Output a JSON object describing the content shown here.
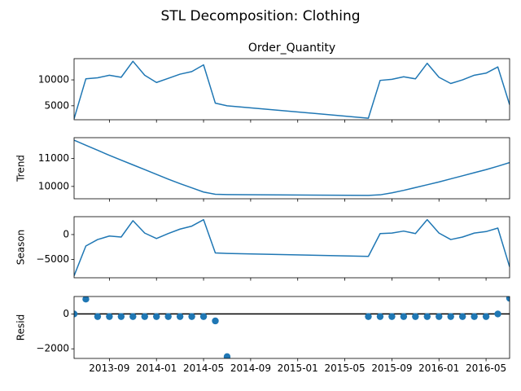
{
  "figure": {
    "title": "STL Decomposition: Clothing"
  },
  "colors": {
    "series": "#1f77b4",
    "zero_line": "#000000",
    "axes": "#000000",
    "background": "#ffffff"
  },
  "chart_data": [
    {
      "type": "line",
      "title": "Order_Quantity",
      "ylabel": "",
      "ylim": [
        2300,
        14100
      ],
      "yticks": [
        {
          "value": 5000,
          "label": "5000"
        },
        {
          "value": 10000,
          "label": "10000"
        }
      ],
      "x": [
        "2013-06",
        "2013-07",
        "2013-08",
        "2013-09",
        "2013-10",
        "2013-11",
        "2013-12",
        "2014-01",
        "2014-02",
        "2014-03",
        "2014-04",
        "2014-05",
        "2014-06",
        "2014-07",
        "2015-07",
        "2015-08",
        "2015-09",
        "2015-10",
        "2015-11",
        "2015-12",
        "2016-01",
        "2016-02",
        "2016-03",
        "2016-04",
        "2016-05",
        "2016-06",
        "2016-07"
      ],
      "values": [
        2500,
        10200,
        10400,
        10900,
        10500,
        13600,
        10900,
        9500,
        10300,
        11100,
        11600,
        12900,
        5500,
        5000,
        2600,
        9900,
        10100,
        10600,
        10200,
        13200,
        10500,
        9300,
        10000,
        10900,
        11300,
        12500,
        5200
      ]
    },
    {
      "type": "line",
      "title": "",
      "ylabel": "Trend",
      "ylim": [
        9560,
        11740
      ],
      "yticks": [
        {
          "value": 10000,
          "label": "10000"
        },
        {
          "value": 11000,
          "label": "11000"
        }
      ],
      "x": [
        "2013-06",
        "2013-07",
        "2013-08",
        "2013-09",
        "2013-10",
        "2013-11",
        "2013-12",
        "2014-01",
        "2014-02",
        "2014-03",
        "2014-04",
        "2014-05",
        "2014-06",
        "2014-07",
        "2015-07",
        "2015-08",
        "2015-09",
        "2015-10",
        "2015-11",
        "2015-12",
        "2016-01",
        "2016-02",
        "2016-03",
        "2016-04",
        "2016-05",
        "2016-06",
        "2016-07"
      ],
      "values": [
        11650,
        11470,
        11290,
        11110,
        10940,
        10770,
        10600,
        10430,
        10260,
        10100,
        9950,
        9800,
        9720,
        9710,
        9680,
        9700,
        9770,
        9860,
        9960,
        10060,
        10160,
        10270,
        10380,
        10490,
        10600,
        10720,
        10850
      ]
    },
    {
      "type": "line",
      "title": "",
      "ylabel": "Season",
      "ylim": [
        -8700,
        3600
      ],
      "yticks": [
        {
          "value": -5000,
          "label": "−5000"
        },
        {
          "value": 0,
          "label": "0"
        }
      ],
      "x": [
        "2013-06",
        "2013-07",
        "2013-08",
        "2013-09",
        "2013-10",
        "2013-11",
        "2013-12",
        "2014-01",
        "2014-02",
        "2014-03",
        "2014-04",
        "2014-05",
        "2014-06",
        "2014-07",
        "2015-07",
        "2015-08",
        "2015-09",
        "2015-10",
        "2015-11",
        "2015-12",
        "2016-01",
        "2016-02",
        "2016-03",
        "2016-04",
        "2016-05",
        "2016-06",
        "2016-07"
      ],
      "values": [
        -8300,
        -2300,
        -1000,
        -300,
        -500,
        2800,
        300,
        -800,
        200,
        1100,
        1700,
        3000,
        -3700,
        -3800,
        -4400,
        200,
        300,
        700,
        200,
        3000,
        300,
        -1000,
        -500,
        300,
        600,
        1300,
        -6500
      ]
    },
    {
      "type": "scatter",
      "title": "",
      "ylabel": "Resid",
      "ylim": [
        -2550,
        1000
      ],
      "yticks": [
        {
          "value": -2000,
          "label": "−2000"
        },
        {
          "value": 0,
          "label": "0"
        }
      ],
      "zero_line": true,
      "x": [
        "2013-06",
        "2013-07",
        "2013-08",
        "2013-09",
        "2013-10",
        "2013-11",
        "2013-12",
        "2014-01",
        "2014-02",
        "2014-03",
        "2014-04",
        "2014-05",
        "2014-06",
        "2014-07",
        "2015-07",
        "2015-08",
        "2015-09",
        "2015-10",
        "2015-11",
        "2015-12",
        "2016-01",
        "2016-02",
        "2016-03",
        "2016-04",
        "2016-05",
        "2016-06",
        "2016-07"
      ],
      "values": [
        0,
        850,
        -150,
        -150,
        -150,
        -150,
        -150,
        -150,
        -150,
        -150,
        -150,
        -150,
        -400,
        -2450,
        -150,
        -150,
        -150,
        -150,
        -150,
        -150,
        -150,
        -150,
        -150,
        -150,
        -150,
        0,
        900
      ]
    }
  ],
  "x_axis": {
    "start": "2013-06",
    "end": "2016-07",
    "ticks": [
      {
        "date": "2013-09",
        "label": "2013-09"
      },
      {
        "date": "2014-01",
        "label": "2014-01"
      },
      {
        "date": "2014-05",
        "label": "2014-05"
      },
      {
        "date": "2014-09",
        "label": "2014-09"
      },
      {
        "date": "2015-01",
        "label": "2015-01"
      },
      {
        "date": "2015-05",
        "label": "2015-05"
      },
      {
        "date": "2015-09",
        "label": "2015-09"
      },
      {
        "date": "2016-01",
        "label": "2016-01"
      },
      {
        "date": "2016-05",
        "label": "2016-05"
      }
    ]
  }
}
